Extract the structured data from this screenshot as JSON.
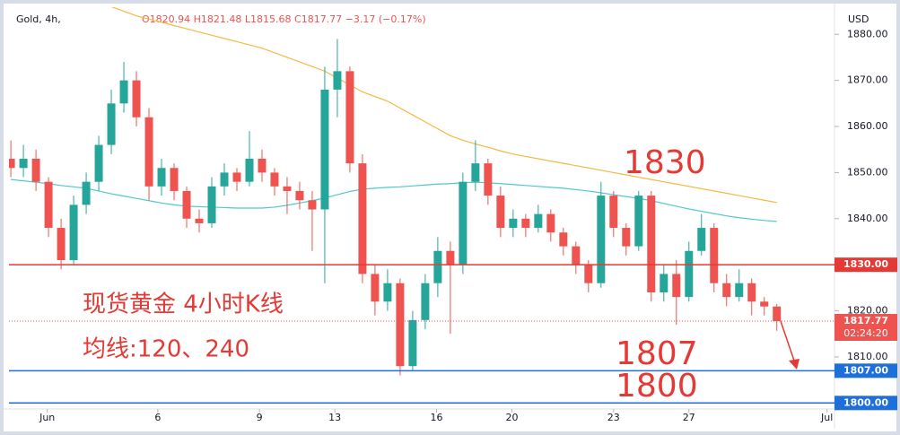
{
  "chart_data": {
    "type": "candlestick",
    "title": "Gold, 4h,",
    "ohlc_readout": "O1820.94  H1821.48  L1815.68  C1817.77  −3.17 (−0.17%)",
    "axis_unit": "USD",
    "x": [
      0,
      1,
      2,
      3,
      4,
      5,
      6,
      7,
      8,
      9,
      10,
      11,
      12,
      13,
      14,
      15,
      16,
      17,
      18,
      19,
      20,
      21,
      22,
      23,
      24,
      25,
      26,
      27,
      28,
      29,
      30,
      31,
      32,
      33,
      34,
      35,
      36,
      37,
      38,
      39,
      40,
      41,
      42,
      43,
      44,
      45,
      46,
      47,
      48,
      49,
      50,
      51,
      52,
      53,
      54,
      55,
      56,
      57,
      58,
      59,
      60,
      61
    ],
    "open": [
      1853,
      1851,
      1853,
      1848,
      1838,
      1831,
      1843,
      1848,
      1856,
      1865,
      1870,
      1862,
      1847,
      1851,
      1846,
      1840,
      1839,
      1847,
      1850,
      1848,
      1853,
      1850,
      1847,
      1846,
      1844,
      1842,
      1868,
      1872,
      1852,
      1828,
      1822,
      1826,
      1808,
      1818,
      1826,
      1833,
      1830,
      1848,
      1852,
      1845,
      1838,
      1840,
      1838,
      1841,
      1837,
      1834,
      1830,
      1826,
      1845,
      1838,
      1834,
      1845,
      1824,
      1828,
      1823,
      1833,
      1838,
      1826,
      1823,
      1826,
      1822,
      1820.94
    ],
    "high": [
      1857,
      1856,
      1855,
      1849,
      1840,
      1845,
      1850,
      1858,
      1868,
      1874,
      1872,
      1864,
      1853,
      1852,
      1847,
      1842,
      1849,
      1852,
      1851,
      1859,
      1855,
      1851,
      1849,
      1848,
      1846,
      1873,
      1879,
      1873,
      1854,
      1830,
      1829,
      1827,
      1820,
      1828,
      1836,
      1835,
      1850,
      1857,
      1853,
      1847,
      1842,
      1841,
      1843,
      1842,
      1838,
      1835,
      1831,
      1848,
      1846,
      1839,
      1846,
      1846,
      1830,
      1831,
      1835,
      1841,
      1839,
      1828,
      1829,
      1827,
      1823,
      1821.48
    ],
    "low": [
      1849,
      1849,
      1846,
      1836,
      1829,
      1830,
      1841,
      1846,
      1854,
      1863,
      1860,
      1844,
      1845,
      1844,
      1838,
      1837,
      1838,
      1845,
      1846,
      1847,
      1848,
      1845,
      1841,
      1842,
      1833,
      1826,
      1862,
      1850,
      1826,
      1819,
      1820,
      1806,
      1807,
      1816,
      1823,
      1815,
      1828,
      1846,
      1843,
      1836,
      1836,
      1836,
      1837,
      1835,
      1832,
      1828,
      1824,
      1825,
      1836,
      1832,
      1833,
      1822,
      1822,
      1817,
      1822,
      1832,
      1824,
      1821,
      1822,
      1819,
      1819,
      1815.68
    ],
    "close": [
      1851,
      1853,
      1848,
      1838,
      1831,
      1843,
      1848,
      1856,
      1865,
      1870,
      1862,
      1847,
      1851,
      1846,
      1840,
      1839,
      1847,
      1850,
      1848,
      1853,
      1850,
      1847,
      1846,
      1844,
      1842,
      1868,
      1872,
      1852,
      1828,
      1822,
      1826,
      1808,
      1818,
      1826,
      1833,
      1830,
      1848,
      1852,
      1845,
      1838,
      1840,
      1838,
      1841,
      1837,
      1834,
      1830,
      1826,
      1845,
      1838,
      1834,
      1845,
      1824,
      1828,
      1823,
      1833,
      1838,
      1826,
      1823,
      1826,
      1822,
      1820.94,
      1817.77
    ],
    "up_color": "#26a69a",
    "down_color": "#ef5350",
    "moving_averages": [
      {
        "color": "#4fc9c9",
        "values": [
          1848.5,
          1848.2,
          1847.9,
          1847.6,
          1847.2,
          1846.9,
          1846.6,
          1846.0,
          1845.4,
          1844.9,
          1844.4,
          1843.9,
          1843.4,
          1843.0,
          1842.7,
          1842.6,
          1842.5,
          1842.4,
          1842.3,
          1842.3,
          1842.3,
          1842.5,
          1842.9,
          1843.4,
          1843.9,
          1844.5,
          1845.2,
          1845.9,
          1846.4,
          1846.6,
          1846.8,
          1846.9,
          1847.1,
          1847.3,
          1847.5,
          1847.6,
          1847.8,
          1847.9,
          1847.8,
          1847.6,
          1847.4,
          1847.2,
          1847.0,
          1846.8,
          1846.6,
          1846.3,
          1846.0,
          1845.6,
          1845.2,
          1844.8,
          1844.4,
          1843.9,
          1843.3,
          1842.7,
          1842.1,
          1841.6,
          1841.1,
          1840.6,
          1840.2,
          1839.9,
          1839.6,
          1839.4
        ]
      },
      {
        "color": "#f5b841",
        "values": [
          null,
          null,
          null,
          null,
          null,
          null,
          null,
          null,
          1886,
          1885,
          1884,
          1883.3,
          1882.6,
          1881.9,
          1881.2,
          1880.5,
          1879.8,
          1879.1,
          1878.4,
          1877.7,
          1877,
          1876,
          1875,
          1874,
          1873,
          1872,
          1870.5,
          1869,
          1867.5,
          1866.5,
          1865.5,
          1864,
          1862.5,
          1861,
          1859.5,
          1858,
          1857,
          1856.2,
          1855.5,
          1854.7,
          1854,
          1853.5,
          1853,
          1852.5,
          1852,
          1851.5,
          1851,
          1850.5,
          1850,
          1849.5,
          1849,
          1848.5,
          1848,
          1847.5,
          1847,
          1846.5,
          1846,
          1845.5,
          1845,
          1844.5,
          1844,
          1843.5
        ]
      }
    ],
    "levels": [
      {
        "value": 1830,
        "label": "1830.00",
        "color": "#e53935"
      },
      {
        "value": 1807,
        "label": "1807.00",
        "color": "#1e6fd9"
      },
      {
        "value": 1800,
        "label": "1800.00",
        "color": "#1e6fd9"
      }
    ],
    "last_price": {
      "value": 1817.77,
      "countdown": "02:24:20",
      "color": "#ef5350"
    },
    "xlim": [
      -0.15,
      65.45
    ],
    "ylim": [
      1795,
      1885.5
    ],
    "xticks": [
      {
        "value": 2.9,
        "label": "Jun"
      },
      {
        "value": 11.7,
        "label": "6"
      },
      {
        "value": 19.8,
        "label": "9"
      },
      {
        "value": 25.8,
        "label": "13"
      },
      {
        "value": 33.9,
        "label": "16"
      },
      {
        "value": 39.9,
        "label": "20"
      },
      {
        "value": 48.0,
        "label": "23"
      },
      {
        "value": 54.0,
        "label": "27"
      },
      {
        "value": 65.0,
        "label": "Jul"
      }
    ],
    "yticks": [
      {
        "value": 1810,
        "label": "1810.00"
      },
      {
        "value": 1820,
        "label": "1820.00"
      },
      {
        "value": 1840,
        "label": "1840.00"
      },
      {
        "value": 1850,
        "label": "1850.00"
      },
      {
        "value": 1860,
        "label": "1860.00"
      },
      {
        "value": 1870,
        "label": "1870.00"
      },
      {
        "value": 1880,
        "label": "1880.00"
      }
    ],
    "annotations": [
      {
        "text": "1830",
        "color": "#e53935"
      },
      {
        "text": "1807",
        "color": "#e53935"
      },
      {
        "text": "1800",
        "color": "#e53935"
      },
      {
        "text": "现货黄金 4小时K线",
        "color": "#e53935"
      },
      {
        "text": "均线:120、240",
        "color": "#e53935"
      }
    ]
  }
}
